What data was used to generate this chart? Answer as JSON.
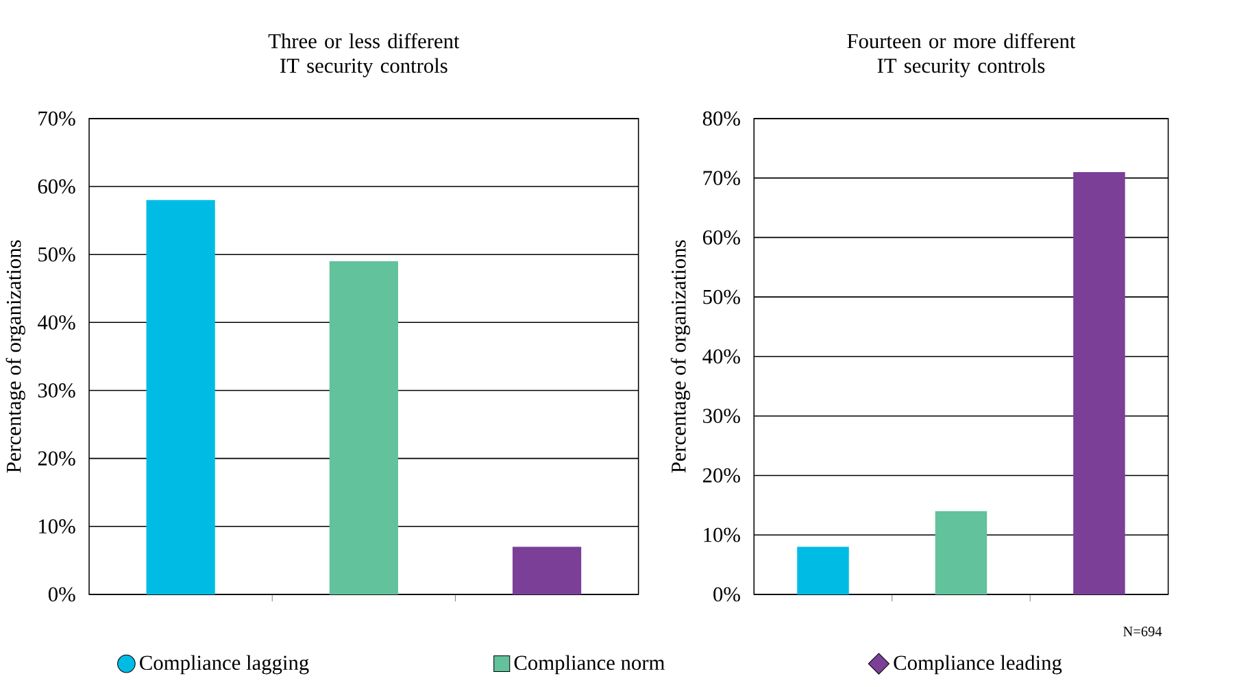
{
  "chart_data": [
    {
      "type": "bar",
      "title": "Three or less different IT security controls",
      "ylabel": "Percentage of organizations",
      "categories": [
        null,
        null,
        null
      ],
      "series": [
        {
          "color": "#00bce4",
          "values": [
            58,
            null,
            null
          ]
        },
        {
          "color": "#62c29c",
          "values": [
            null,
            49,
            null
          ]
        },
        {
          "color": "#7b3f98",
          "values": [
            null,
            null,
            7
          ]
        }
      ],
      "ylim": [
        0,
        70
      ],
      "yticks": [
        {
          "value": 0,
          "label": "0%"
        },
        {
          "value": 10,
          "label": "10%"
        },
        {
          "value": 20,
          "label": "20%"
        },
        {
          "value": 30,
          "label": "30%"
        },
        {
          "value": 40,
          "label": "40%"
        },
        {
          "value": 50,
          "label": "50%"
        },
        {
          "value": 60,
          "label": "60%"
        },
        {
          "value": 70,
          "label": "70%"
        }
      ],
      "grid": "y",
      "tick_labels": "y",
      "legend": false
    },
    {
      "type": "bar",
      "title": "Fourteen or more different IT security controls",
      "ylabel": "Percentage of organizations",
      "categories": [
        null,
        null,
        null
      ],
      "series": [
        {
          "name": "Compliance lagging",
          "color": "#00bce4",
          "marker": "circle",
          "values": [
            8,
            null,
            null
          ]
        },
        {
          "name": "Compliance norm",
          "color": "#62c29c",
          "marker": "square",
          "values": [
            null,
            14,
            null
          ]
        },
        {
          "name": "Compliance leading",
          "color": "#7b3f98",
          "marker": "diamond",
          "values": [
            null,
            null,
            71
          ]
        }
      ],
      "ylim": [
        0,
        80
      ],
      "yticks": [
        {
          "value": 0,
          "label": "0%"
        },
        {
          "value": 10,
          "label": "10%"
        },
        {
          "value": 20,
          "label": "20%"
        },
        {
          "value": 30,
          "label": "30%"
        },
        {
          "value": 40,
          "label": "40%"
        },
        {
          "value": 50,
          "label": "50%"
        },
        {
          "value": 60,
          "label": "60%"
        },
        {
          "value": 70,
          "label": "70%"
        },
        {
          "value": 80,
          "label": "80%"
        }
      ],
      "grid": "y",
      "tick_labels": "y",
      "legend": "bottom",
      "annotations": [
        "N=694"
      ]
    }
  ]
}
